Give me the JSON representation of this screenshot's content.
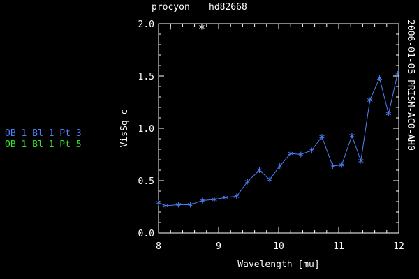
{
  "header": {
    "target": "procyon",
    "calibrator": "hd82668"
  },
  "side_label": "2006-01-05 PRISM-AC0-AH0",
  "legend": [
    {
      "label": "OB 1 Bl 1 Pt 3",
      "color": "#4c7ff7"
    },
    {
      "label": "OB 1 Bl 1 Pt 5",
      "color": "#35e02f"
    }
  ],
  "chart_data": {
    "type": "line",
    "title": "procyon hd82668",
    "xlabel": "Wavelength [mu]",
    "ylabel": "VisSq c",
    "xlim": [
      8,
      12
    ],
    "ylim": [
      0,
      2
    ],
    "xticks": [
      8,
      9,
      10,
      11,
      12
    ],
    "xtick_labels": [
      "8",
      "9",
      "10",
      "11",
      "12"
    ],
    "yticks": [
      0,
      0.5,
      1,
      1.5,
      2
    ],
    "ytick_labels": [
      "0.0",
      "0.5",
      "1.0",
      "1.5",
      "2.0"
    ],
    "grid": false,
    "series": [
      {
        "name": "OB 1 Bl 1 Pt 3",
        "color": "#4c7ff7",
        "marker": "asterisk",
        "x": [
          8.0,
          8.12,
          8.33,
          8.53,
          8.73,
          8.93,
          9.12,
          9.3,
          9.48,
          9.68,
          9.85,
          10.02,
          10.2,
          10.37,
          10.55,
          10.72,
          10.9,
          11.05,
          11.22,
          11.37,
          11.52,
          11.68,
          11.83,
          11.98
        ],
        "y": [
          0.29,
          0.26,
          0.27,
          0.27,
          0.31,
          0.32,
          0.34,
          0.35,
          0.49,
          0.6,
          0.51,
          0.64,
          0.76,
          0.75,
          0.79,
          0.92,
          0.64,
          0.65,
          0.93,
          0.69,
          1.27,
          1.48,
          1.14,
          1.52
        ]
      },
      {
        "name": "OB 1 Bl 1 Pt 5",
        "color": "#35e02f",
        "marker": "asterisk",
        "x": [],
        "y": []
      }
    ],
    "annotations": [
      {
        "symbol": "+",
        "x": 8.2,
        "y": 1.97
      },
      {
        "symbol": "*",
        "x": 8.72,
        "y": 1.97
      }
    ]
  }
}
